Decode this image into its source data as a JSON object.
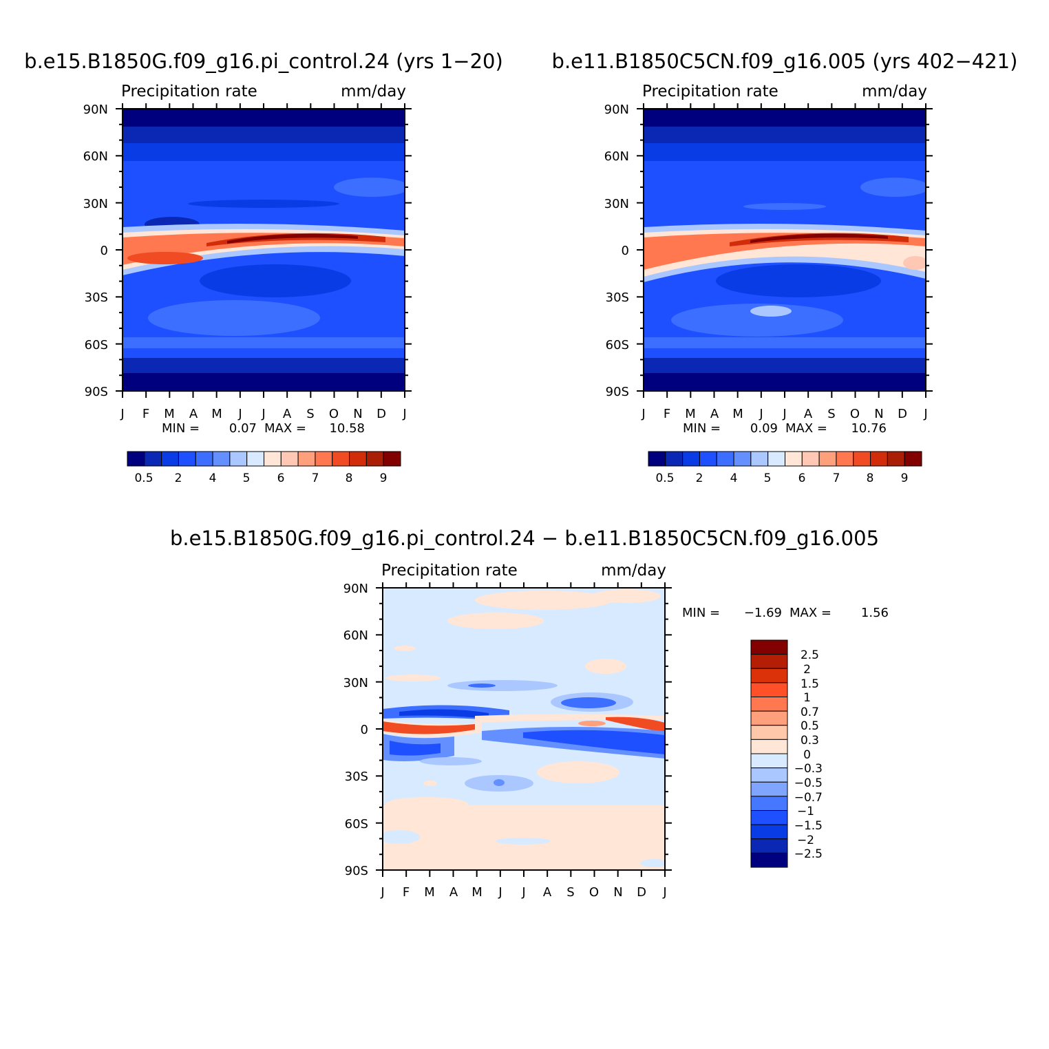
{
  "chart_data": [
    {
      "type": "heatmap",
      "title": "b.e15.B1850G.f09_g16.pi_control.24 (yrs 1-20)",
      "left_label": "Precipitation rate",
      "right_label": "mm/day",
      "x_tick_labels": [
        "J",
        "F",
        "M",
        "A",
        "M",
        "J",
        "J",
        "A",
        "S",
        "O",
        "N",
        "D",
        "J"
      ],
      "y_tick_labels": [
        "90N",
        "60N",
        "30N",
        "0",
        "30S",
        "60S",
        "90S"
      ],
      "y_range": [
        -90,
        90
      ],
      "min_label": "MIN =",
      "min_value": "0.07",
      "max_label": "MAX =",
      "max_value": "10.58",
      "colorbar_orientation": "horizontal",
      "colorbar_levels": [
        "0.5",
        "2",
        "4",
        "5",
        "6",
        "7",
        "8",
        "9"
      ],
      "colorbar_colors": [
        "#00007f",
        "#0a28b4",
        "#0a3ce6",
        "#1e50ff",
        "#3c6eff",
        "#6490ff",
        "#aac8ff",
        "#d7eaff",
        "#ffe6d7",
        "#ffc8b4",
        "#ffa07d",
        "#ff7850",
        "#f04b23",
        "#d22d0a",
        "#aa1e05",
        "#820000"
      ],
      "itcz_peak_mm_day": 10.58
    },
    {
      "type": "heatmap",
      "title": "b.e11.B1850C5CN.f09_g16.005 (yrs 402-421)",
      "left_label": "Precipitation rate",
      "right_label": "mm/day",
      "x_tick_labels": [
        "J",
        "F",
        "M",
        "A",
        "M",
        "J",
        "J",
        "A",
        "S",
        "O",
        "N",
        "D",
        "J"
      ],
      "y_tick_labels": [
        "90N",
        "60N",
        "30N",
        "0",
        "30S",
        "60S",
        "90S"
      ],
      "y_range": [
        -90,
        90
      ],
      "min_label": "MIN =",
      "min_value": "0.09",
      "max_label": "MAX =",
      "max_value": "10.76",
      "colorbar_orientation": "horizontal",
      "colorbar_levels": [
        "0.5",
        "2",
        "4",
        "5",
        "6",
        "7",
        "8",
        "9"
      ],
      "colorbar_colors": [
        "#00007f",
        "#0a28b4",
        "#0a3ce6",
        "#1e50ff",
        "#3c6eff",
        "#6490ff",
        "#aac8ff",
        "#d7eaff",
        "#ffe6d7",
        "#ffc8b4",
        "#ffa07d",
        "#ff7850",
        "#f04b23",
        "#d22d0a",
        "#aa1e05",
        "#820000"
      ],
      "itcz_peak_mm_day": 10.76
    },
    {
      "type": "heatmap",
      "title": "b.e15.B1850G.f09_g16.pi_control.24 - b.e11.B1850C5CN.f09_g16.005",
      "left_label": "Precipitation rate",
      "right_label": "mm/day",
      "x_tick_labels": [
        "J",
        "F",
        "M",
        "A",
        "M",
        "J",
        "J",
        "A",
        "S",
        "O",
        "N",
        "D",
        "J"
      ],
      "y_tick_labels": [
        "90N",
        "60N",
        "30N",
        "0",
        "30S",
        "60S",
        "90S"
      ],
      "y_range": [
        -90,
        90
      ],
      "min_label": "MIN =",
      "min_value": "-1.69",
      "max_label": "MAX =",
      "max_value": "1.56",
      "colorbar_orientation": "vertical",
      "colorbar_levels": [
        "2.5",
        "2",
        "1.5",
        "1",
        "0.7",
        "0.5",
        "0.3",
        "0",
        "-0.3",
        "-0.5",
        "-0.7",
        "-1",
        "-1.5",
        "-2",
        "-2.5"
      ],
      "colorbar_colors": [
        "#820000",
        "#b41e05",
        "#dc320a",
        "#ff5028",
        "#ff7850",
        "#ffa07d",
        "#ffc8aa",
        "#ffe6d7",
        "#d7eaff",
        "#aac8ff",
        "#7fa5ff",
        "#4678ff",
        "#1e50ff",
        "#0a3ce6",
        "#0a28b4",
        "#00007f"
      ]
    }
  ]
}
